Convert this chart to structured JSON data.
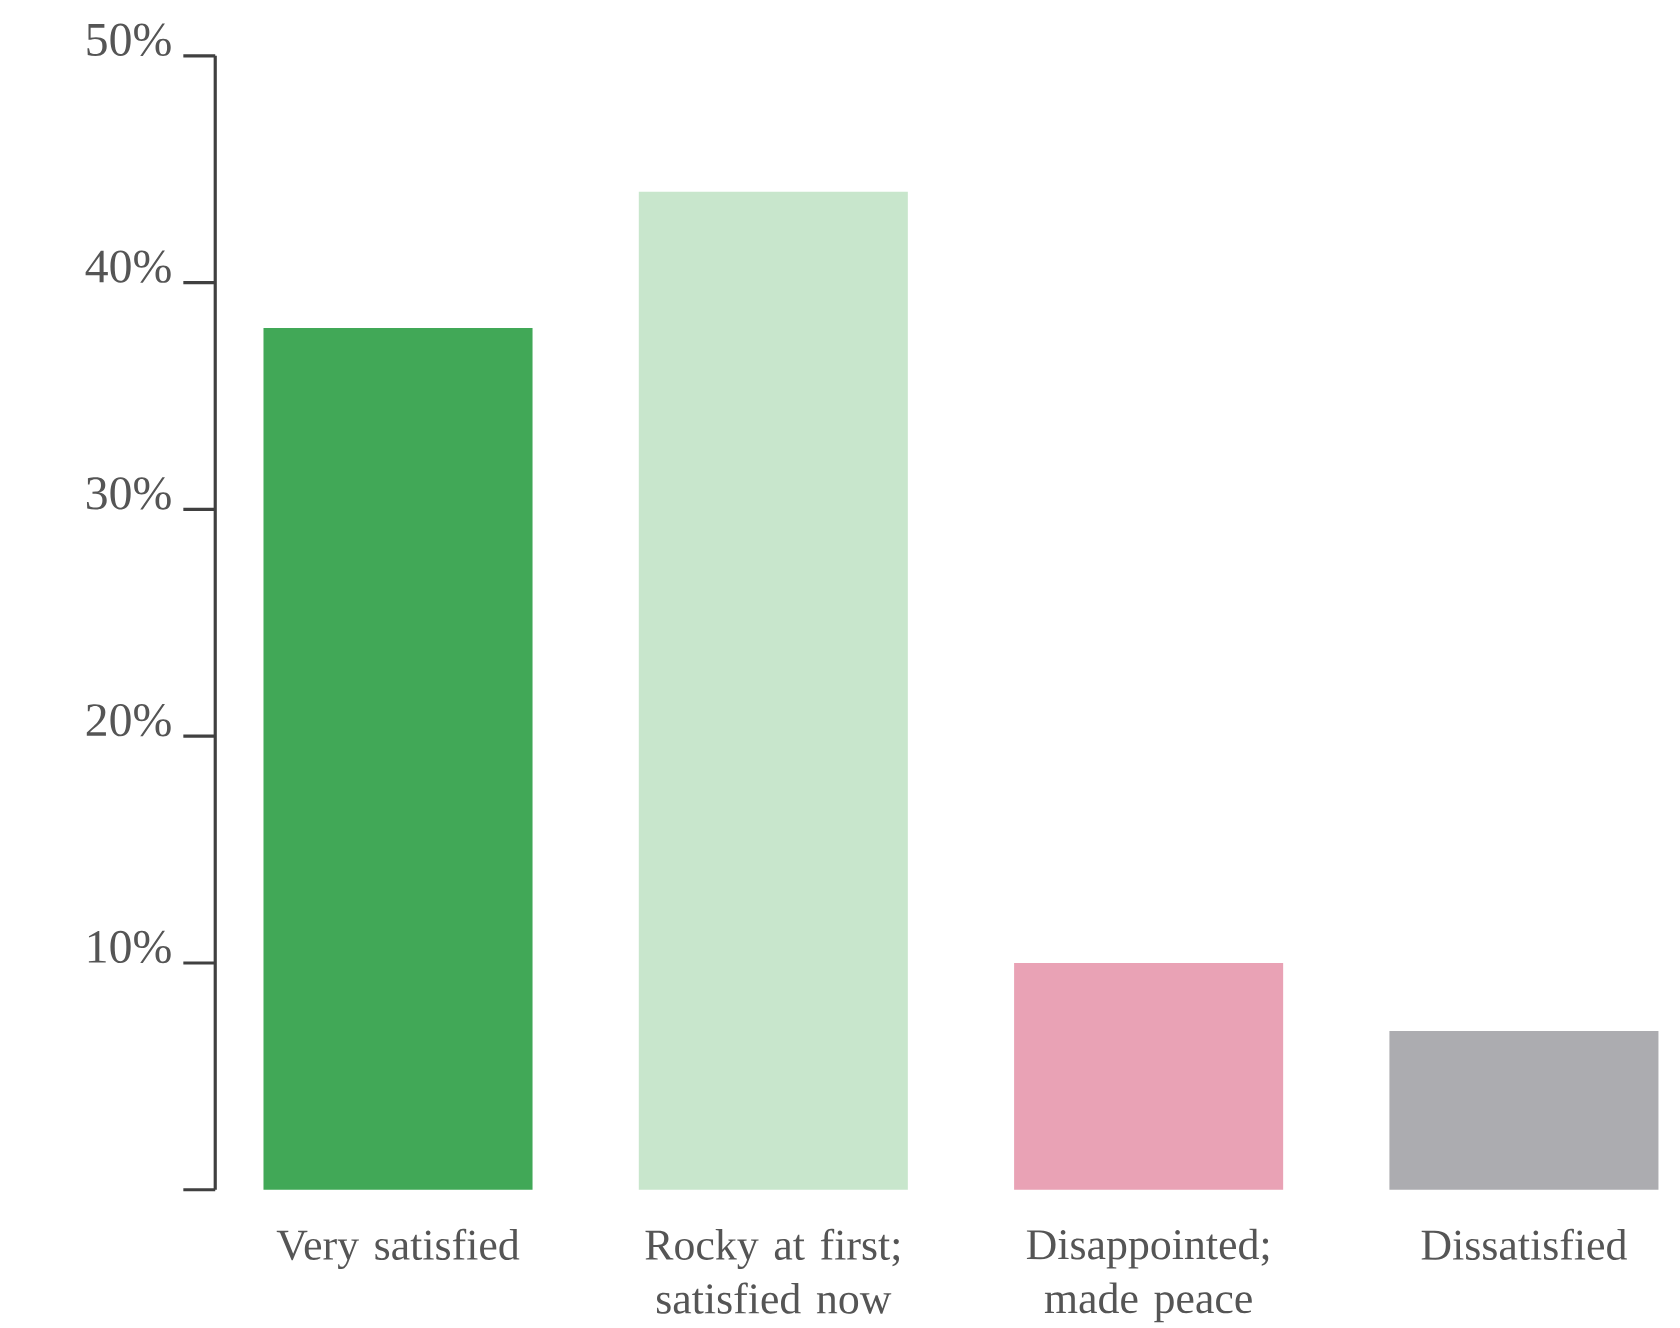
{
  "chart_data": {
    "type": "bar",
    "categories": [
      "Very satisfied",
      "Rocky at first; satisfied now",
      "Disappointed; made peace",
      "Dissatisfied"
    ],
    "values": [
      38,
      44,
      10,
      7
    ],
    "colors": [
      "#41a857",
      "#c8e6cc",
      "#e9a2b5",
      "#acacb0"
    ],
    "ylim": [
      0,
      50
    ],
    "yticks": [
      {
        "value": 0,
        "label": null
      },
      {
        "value": 10,
        "label": "10%"
      },
      {
        "value": 20,
        "label": "20%"
      },
      {
        "value": 30,
        "label": "30%"
      },
      {
        "value": 40,
        "label": "40%"
      },
      {
        "value": 50,
        "label": "50%"
      }
    ],
    "grid": false
  }
}
